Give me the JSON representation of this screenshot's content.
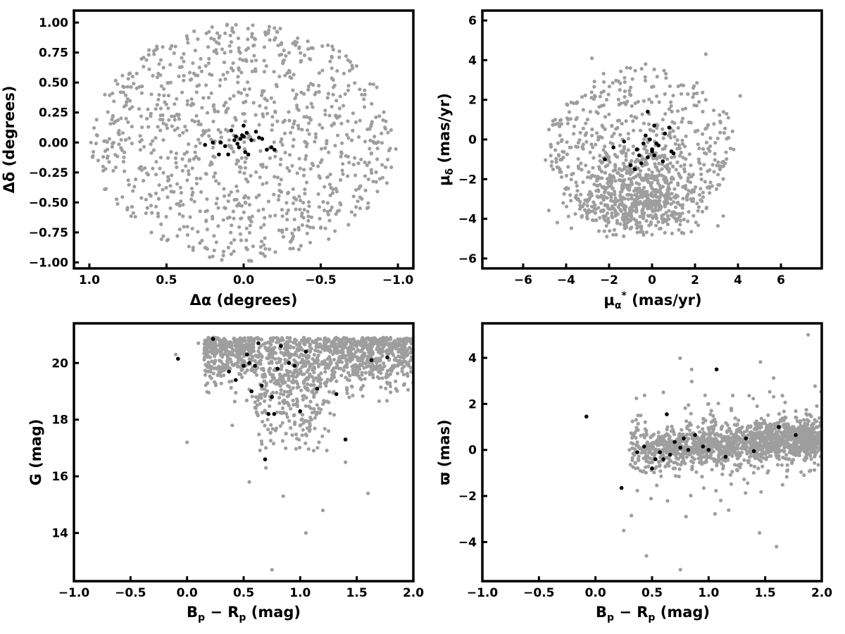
{
  "colors": {
    "field_stars": "#9e9e9e",
    "members": "#000000",
    "frame": "#000000",
    "background": "#ffffff"
  },
  "chart_data": [
    {
      "type": "scatter",
      "xlabel": "Δα (degrees)",
      "ylabel": "Δδ (degrees)",
      "xlim": [
        1.1,
        -1.1
      ],
      "ylim": [
        -1.05,
        1.1
      ],
      "x_inverted": true,
      "xticks": [
        "1.0",
        "0.5",
        "0.0",
        "−0.5",
        "−1.0"
      ],
      "yticks": [
        "−1.00",
        "−0.75",
        "−0.50",
        "−0.25",
        "0.00",
        "0.25",
        "0.50",
        "0.75",
        "1.00"
      ],
      "grid": false,
      "series": [
        {
          "role": "field",
          "color": "#9e9e9e",
          "description": "field stars, ~1000 points uniformly filling a circle of radius ~1 deg",
          "x": [
            0.72,
            -0.31,
            0.12,
            0.55,
            -0.88,
            0.34,
            -0.05,
            0.91,
            -0.62,
            0.2,
            -0.45,
            0.66,
            -0.79,
            0.08,
            0.43,
            -0.18,
            0.85,
            -0.95,
            0.28,
            -0.7
          ],
          "y": [
            0.55,
            -0.82,
            0.91,
            -0.47,
            0.22,
            0.31,
            -0.66,
            -0.12,
            0.71,
            -0.95,
            0.48,
            -0.23,
            -0.4,
            0.62,
            -0.78,
            0.37,
            0.41,
            -0.05,
            -0.3,
            -0.58
          ]
        },
        {
          "role": "members",
          "color": "#000000",
          "x": [
            0.05,
            0.02,
            -0.02,
            0.0,
            0.03,
            -0.05,
            0.08,
            -0.01,
            0.12,
            -0.1,
            0.15,
            -0.15,
            -0.18,
            0.06,
            0.01,
            -0.03,
            0.1,
            0.25,
            0.2,
            -0.08,
            -0.2,
            0.0,
            0.04,
            -0.12,
            0.16
          ],
          "y": [
            0.05,
            0.03,
            0.08,
            0.14,
            -0.04,
            0.02,
            0.1,
            -0.08,
            -0.03,
            0.04,
            0.0,
            -0.06,
            -0.04,
            0.02,
            0.06,
            -0.1,
            -0.1,
            -0.02,
            0.0,
            0.09,
            -0.06,
            0.05,
            -0.01,
            0.03,
            -0.1
          ]
        }
      ]
    },
    {
      "type": "scatter",
      "xlabel": "μα* (mas/yr)",
      "ylabel": "μδ (mas/yr)",
      "xlim": [
        -7.9,
        7.9
      ],
      "ylim": [
        -6.5,
        6.5
      ],
      "xticks": [
        "−6",
        "−4",
        "−2",
        "0",
        "2",
        "4",
        "6"
      ],
      "yticks": [
        "−6",
        "−4",
        "−2",
        "0",
        "2",
        "4",
        "6"
      ],
      "grid": false,
      "series": [
        {
          "role": "field",
          "color": "#9e9e9e",
          "description": "field stars, ~1000 points concentrated within radius ~5 mas/yr, dense near (-0.5,-3.5)",
          "x": [
            -4.8,
            -3.2,
            -1.5,
            0.5,
            2.5,
            3.8,
            -2.0,
            1.2,
            -0.5,
            2.5,
            -2.8,
            4.1,
            0.0,
            -1.0,
            1.8,
            -3.5,
            0.8,
            -4.2,
            3.0,
            -0.3
          ],
          "y": [
            0.5,
            1.5,
            2.5,
            1.0,
            2.0,
            -0.5,
            -3.5,
            -4.0,
            -4.5,
            4.3,
            4.1,
            2.2,
            -4.8,
            -2.0,
            -3.0,
            -3.0,
            -1.5,
            -1.0,
            -2.5,
            3.8
          ]
        },
        {
          "role": "members",
          "color": "#000000",
          "x": [
            -0.2,
            0.1,
            -0.3,
            0.0,
            0.5,
            -0.5,
            0.8,
            -0.6,
            0.2,
            -1.3,
            -0.8,
            1.0,
            -1.8,
            -2.2,
            -0.1,
            -0.4,
            0.3,
            -0.7,
            0.9,
            0.1,
            -0.2,
            -1.0,
            0.0,
            0.6
          ],
          "y": [
            1.4,
            0.7,
            0.2,
            -0.5,
            -1.1,
            -1.2,
            0.6,
            -0.8,
            -0.2,
            -0.1,
            -1.5,
            -0.7,
            -0.4,
            -1.0,
            0.0,
            -0.2,
            -0.3,
            -0.5,
            -0.6,
            -0.8,
            -0.9,
            -1.3,
            -0.6,
            0.3
          ]
        }
      ]
    },
    {
      "type": "scatter",
      "xlabel": "Bp − Rp (mag)",
      "ylabel": "G (mag)",
      "xlim": [
        -1.0,
        2.0
      ],
      "ylim": [
        12.3,
        21.4
      ],
      "y_inverted": false,
      "xticks": [
        "−1.0",
        "−0.5",
        "0.0",
        "0.5",
        "1.0",
        "1.5",
        "2.0"
      ],
      "yticks": [
        "14",
        "16",
        "18",
        "20"
      ],
      "grid": false,
      "series": [
        {
          "role": "field",
          "color": "#9e9e9e",
          "description": "field stars, color-magnitude diagram, dense band at G~19-21 for Bp-Rp 0.2-2.0",
          "x": [
            -0.1,
            0.1,
            0.3,
            0.5,
            0.7,
            0.9,
            1.1,
            1.3,
            1.5,
            1.7,
            1.9,
            0.75,
            0.55,
            1.05,
            1.2,
            1.6,
            0.0,
            0.85,
            1.4,
            0.4
          ],
          "y": [
            20.3,
            20.7,
            20.5,
            20.0,
            19.2,
            18.5,
            18.0,
            19.5,
            20.2,
            20.4,
            20.0,
            12.7,
            15.8,
            14.0,
            14.8,
            15.4,
            17.2,
            15.3,
            16.5,
            17.8
          ]
        },
        {
          "role": "members",
          "color": "#000000",
          "x": [
            -0.08,
            0.23,
            0.37,
            0.43,
            0.5,
            0.53,
            0.55,
            0.57,
            0.6,
            0.63,
            0.66,
            0.69,
            0.72,
            0.75,
            0.77,
            0.8,
            0.83,
            0.9,
            0.95,
            1.0,
            1.05,
            1.15,
            1.32,
            1.4,
            1.63,
            1.77
          ],
          "y": [
            20.15,
            20.85,
            19.7,
            19.4,
            19.9,
            20.3,
            20.0,
            19.0,
            19.9,
            20.7,
            19.2,
            16.6,
            18.2,
            18.8,
            18.2,
            19.8,
            20.6,
            20.0,
            19.9,
            18.3,
            20.4,
            19.1,
            18.9,
            17.3,
            20.1,
            20.2
          ]
        }
      ]
    },
    {
      "type": "scatter",
      "xlabel": "Bp − Rp (mag)",
      "ylabel": "ϖ (mas)",
      "xlim": [
        -1.0,
        2.0
      ],
      "ylim": [
        -5.7,
        5.5
      ],
      "xticks": [
        "−1.0",
        "−0.5",
        "0.0",
        "0.5",
        "1.0",
        "1.5",
        "2.0"
      ],
      "yticks": [
        "−4",
        "−2",
        "0",
        "2",
        "4"
      ],
      "grid": false,
      "series": [
        {
          "role": "field",
          "color": "#9e9e9e",
          "description": "field stars, parallax vs colour, dense band at ϖ~0 for Bp-Rp 0.3-2.0",
          "x": [
            0.3,
            0.5,
            0.7,
            0.9,
            1.1,
            1.3,
            1.5,
            1.7,
            1.9,
            0.6,
            0.75,
            1.45,
            1.88,
            0.25,
            0.45,
            1.6,
            1.0,
            0.85,
            1.2,
            0.4
          ],
          "y": [
            0.0,
            0.3,
            -0.1,
            0.2,
            0.1,
            0.4,
            0.3,
            0.5,
            0.6,
            2.5,
            -5.2,
            -3.6,
            5.0,
            -3.5,
            -4.6,
            -4.2,
            2.0,
            3.5,
            1.8,
            1.5
          ]
        },
        {
          "role": "members",
          "color": "#000000",
          "x": [
            -0.08,
            0.23,
            0.37,
            0.43,
            0.5,
            0.53,
            0.57,
            0.6,
            0.63,
            0.66,
            0.7,
            0.75,
            0.78,
            0.82,
            0.88,
            0.95,
            1.0,
            1.07,
            1.15,
            1.33,
            1.4,
            1.62,
            1.77
          ],
          "y": [
            1.45,
            -1.65,
            -0.1,
            0.15,
            -0.8,
            -0.4,
            -0.1,
            -0.4,
            1.55,
            -0.2,
            0.35,
            0.1,
            0.5,
            0.0,
            0.65,
            0.15,
            0.0,
            3.5,
            -0.3,
            0.5,
            -0.05,
            1.0,
            0.65
          ]
        }
      ]
    }
  ]
}
